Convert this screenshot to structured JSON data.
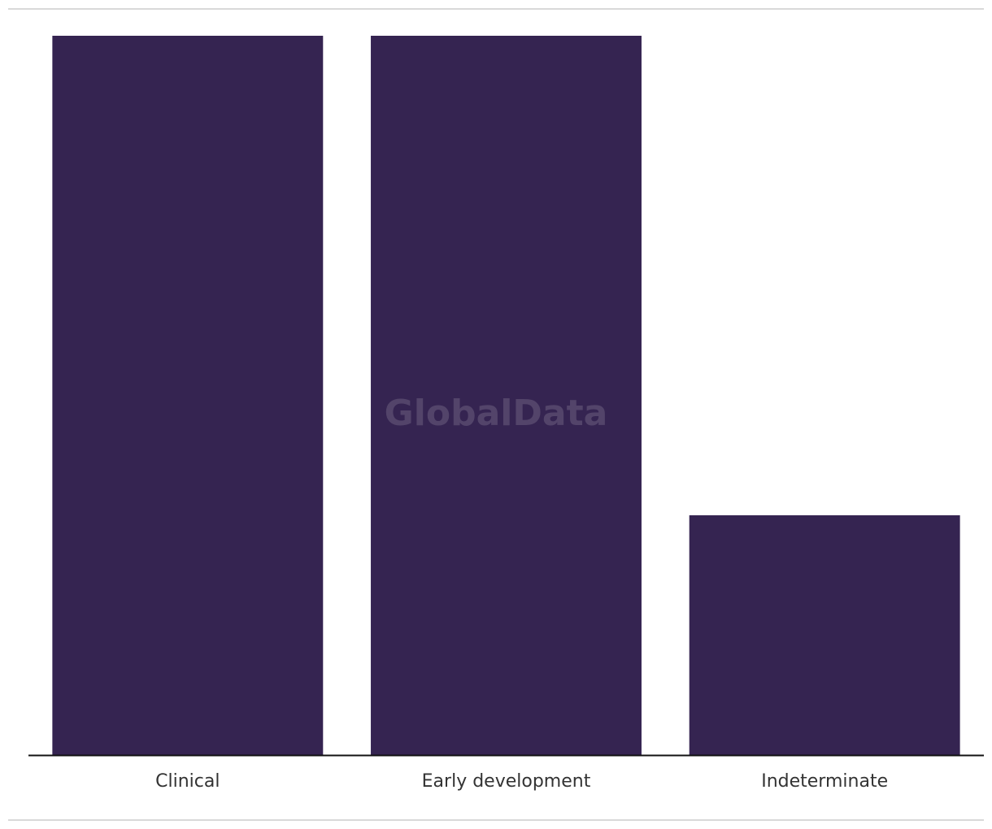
{
  "chart_data": {
    "type": "bar",
    "watermark": "GlobalData",
    "categories": [
      "Clinical",
      "Early development",
      "Indeterminate"
    ],
    "values": [
      3,
      3,
      1
    ],
    "color": "#352451",
    "ylim": [
      0,
      3
    ]
  }
}
